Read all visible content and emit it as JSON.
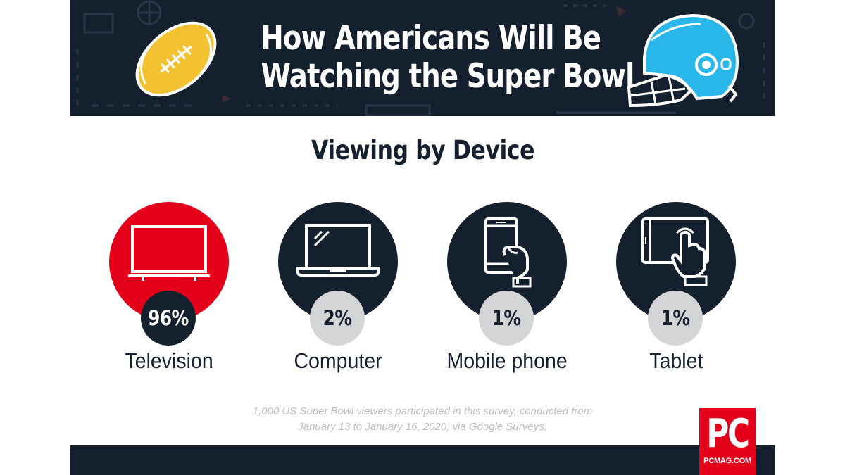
{
  "header": {
    "title_line1": "How Americans Will Be",
    "title_line2": "Watching the Super Bowl",
    "left_icon": "football-icon",
    "right_icon": "helmet-icon"
  },
  "section": {
    "title": "Viewing by Device"
  },
  "devices": [
    {
      "label": "Television",
      "percent": "96%",
      "icon": "television-icon",
      "circle_color": "#e4001b",
      "badge_color": "#15202e",
      "badge_text_color": "#ffffff"
    },
    {
      "label": "Computer",
      "percent": "2%",
      "icon": "laptop-icon",
      "circle_color": "#15202e",
      "badge_color": "#d4d5d7",
      "badge_text_color": "#15202e"
    },
    {
      "label": "Mobile phone",
      "percent": "1%",
      "icon": "mobile-phone-icon",
      "circle_color": "#15202e",
      "badge_color": "#d4d5d7",
      "badge_text_color": "#15202e"
    },
    {
      "label": "Tablet",
      "percent": "1%",
      "icon": "tablet-icon",
      "circle_color": "#15202e",
      "badge_color": "#d4d5d7",
      "badge_text_color": "#15202e"
    }
  ],
  "footnote": {
    "line1": "1,000 US Super Bowl viewers participated in this survey, conducted from",
    "line2": "January 13 to January 16, 2020, via Google Surveys."
  },
  "logo": {
    "text": "PC",
    "site": "PCMAG.COM"
  },
  "colors": {
    "navy": "#15202e",
    "red": "#e4001b",
    "football": "#f2c230",
    "helmet": "#29b6e8",
    "gray": "#d4d5d7"
  }
}
